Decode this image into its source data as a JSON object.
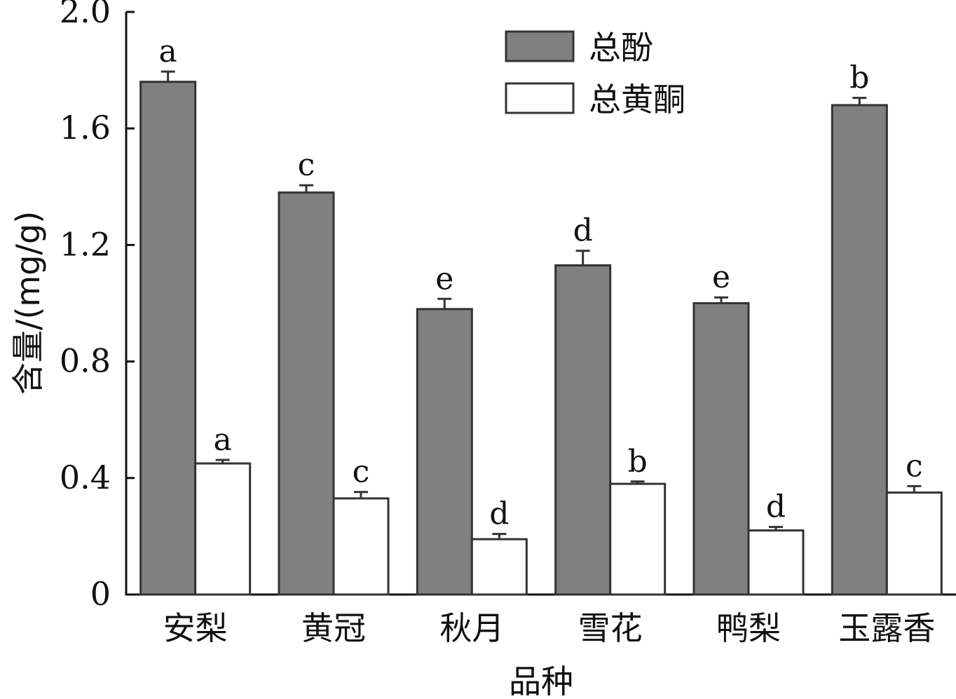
{
  "chart_data": {
    "type": "bar",
    "title": "",
    "xlabel": "品种",
    "ylabel": "含量/(mg/g)",
    "ylim": [
      0,
      2.0
    ],
    "yticks": [
      0,
      0.4,
      0.8,
      1.2,
      1.6,
      2.0
    ],
    "ytick_labels": [
      "0",
      "0.4",
      "0.8",
      "1.2",
      "1.6",
      "2.0"
    ],
    "categories": [
      "安梨",
      "黄冠",
      "秋月",
      "雪花",
      "鸭梨",
      "玉露香"
    ],
    "legend_position": "top-right",
    "grid": false,
    "series": [
      {
        "name": "总酚",
        "color": "#808080",
        "values": [
          1.76,
          1.38,
          0.98,
          1.13,
          1.0,
          1.68
        ],
        "errors": [
          0.035,
          0.025,
          0.035,
          0.05,
          0.02,
          0.025
        ],
        "labels": [
          "a",
          "c",
          "e",
          "d",
          "e",
          "b"
        ]
      },
      {
        "name": "总黄酮",
        "color": "#ffffff",
        "values": [
          0.45,
          0.33,
          0.19,
          0.38,
          0.22,
          0.35
        ],
        "errors": [
          0.012,
          0.022,
          0.018,
          0.008,
          0.012,
          0.022
        ],
        "labels": [
          "a",
          "c",
          "d",
          "b",
          "d",
          "c"
        ]
      }
    ]
  }
}
